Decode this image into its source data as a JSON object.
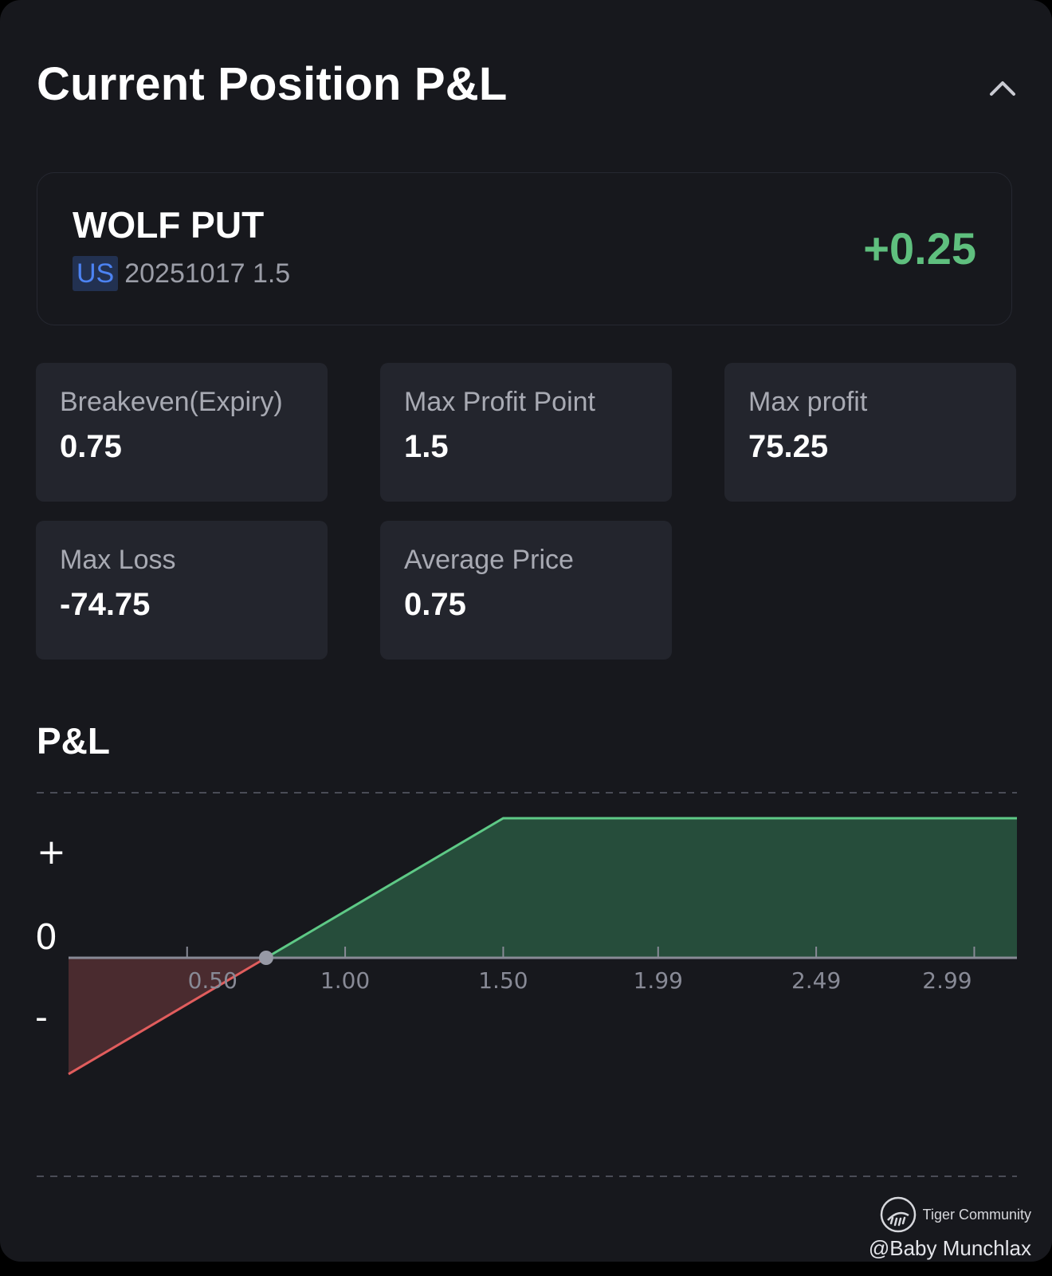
{
  "panel": {
    "title": "Current Position P&L",
    "collapse_icon": "chevron-up-icon"
  },
  "position": {
    "symbol": "WOLF PUT",
    "market": "US",
    "contract": "20251017 1.5",
    "pnl": "+0.25",
    "pnl_color": "#5fbf7e",
    "market_badge_color": "#4c83f3"
  },
  "stats": [
    {
      "label": "Breakeven(Expiry)",
      "value": "0.75"
    },
    {
      "label": "Max Profit Point",
      "value": "1.5"
    },
    {
      "label": "Max profit",
      "value": "75.25"
    },
    {
      "label": "Max Loss",
      "value": "-74.75"
    },
    {
      "label": "Average Price",
      "value": "0.75"
    }
  ],
  "pnl_section": {
    "title": "P&L",
    "y_labels": {
      "plus": "+",
      "zero": "0",
      "minus": "-"
    }
  },
  "chart_data": {
    "type": "area",
    "title": "P&L",
    "x_tick_labels": [
      "0.50",
      "1.00",
      "1.50",
      "1.99",
      "2.49",
      "2.99"
    ],
    "x_tick_values": [
      0.5,
      1.0,
      1.5,
      1.99,
      2.49,
      2.99
    ],
    "xlim": [
      0.125,
      3.125
    ],
    "series": [
      {
        "x": [
          0.125,
          0.75,
          1.5,
          3.125
        ],
        "y": [
          -0.625,
          0,
          0.75,
          0.75
        ]
      }
    ],
    "ylim": [
      -0.75,
      0.8
    ],
    "breakeven": 0.75,
    "colors": {
      "profit_line": "#5ec986",
      "profit_fill": "#264d3b",
      "loss_line": "#e15d5d",
      "loss_fill": "#4a2b2f",
      "axis": "#888a96",
      "marker": "#9799a5"
    },
    "grid": false
  },
  "watermark": {
    "brand": "Tiger Community",
    "handle": "@Baby Munchlax",
    "logo_icon": "tiger-logo-icon"
  }
}
